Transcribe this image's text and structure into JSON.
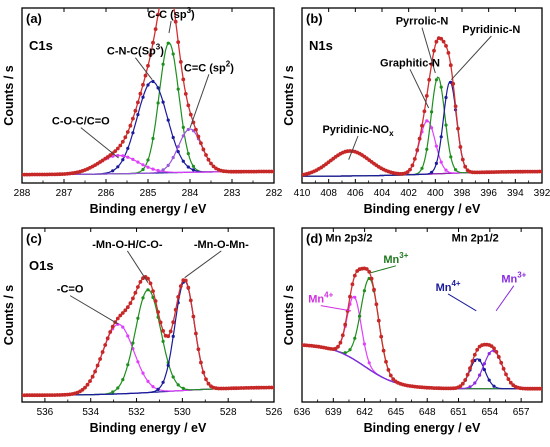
{
  "figure": {
    "panels": [
      {
        "id": "a",
        "tag": "(a)",
        "element": "C1s",
        "xlabel": "Binding energy / eV",
        "ylabel": "Counts / s",
        "xlim": [
          288,
          282
        ],
        "xticks": [
          288,
          287,
          286,
          285,
          284,
          283,
          282
        ],
        "annotations": [
          {
            "text": "C-C (sp",
            "sup": "3",
            "after": ")",
            "x": 284.45,
            "y": 0.99,
            "color": "#000000",
            "arrow_to": [
              284.5,
              0.9
            ]
          },
          {
            "text": "C-N-C(Sp",
            "sup": "3",
            "after": ")",
            "x": 285.3,
            "y": 0.77,
            "color": "#000000",
            "arrow_to": [
              284.9,
              0.62
            ]
          },
          {
            "text": "C=C (sp",
            "sup": "2",
            "after": ")",
            "x": 283.55,
            "y": 0.67,
            "color": "#000000",
            "arrow_to": [
              284.0,
              0.33
            ]
          },
          {
            "text": "C-O-C/C=O",
            "sup": "",
            "after": "",
            "x": 286.6,
            "y": 0.35,
            "color": "#000000",
            "arrow_to": [
              285.7,
              0.15
            ]
          }
        ]
      },
      {
        "id": "b",
        "tag": "(b)",
        "element": "N1s",
        "xlabel": "Binding energy / eV",
        "ylabel": "Counts / s",
        "xlim": [
          410,
          392
        ],
        "xticks": [
          410,
          408,
          406,
          404,
          402,
          400,
          398,
          396,
          394,
          392
        ],
        "annotations": [
          {
            "text": "Pyrrolic-N",
            "sup": "",
            "after": "",
            "x": 401.0,
            "y": 0.95,
            "color": "#000000",
            "arrow_to": [
              400.0,
              0.66
            ]
          },
          {
            "text": "Pyridinic-N",
            "sup": "",
            "after": "",
            "x": 395.8,
            "y": 0.9,
            "color": "#000000",
            "arrow_to": [
              398.8,
              0.62
            ]
          },
          {
            "text": "Graphitic-N",
            "sup": "",
            "after": "",
            "x": 401.9,
            "y": 0.7,
            "color": "#000000",
            "arrow_to": [
              400.5,
              0.45
            ]
          },
          {
            "text": "Pyridinic-NO",
            "sup": "x",
            "after": "",
            "x": 405.8,
            "y": 0.3,
            "color": "#000000",
            "arrow_to": [
              406.5,
              0.14
            ],
            "sub": true
          }
        ]
      },
      {
        "id": "c",
        "tag": "(c)",
        "element": "O1s",
        "xlabel": "Binding energy / eV",
        "ylabel": "Counts / s",
        "xlim": [
          537,
          526
        ],
        "xticks": [
          536,
          534,
          532,
          530,
          528,
          526
        ],
        "annotations": [
          {
            "text": "-Mn-O-H/C-O-",
            "sup": "",
            "after": "",
            "x": 532.4,
            "y": 0.93,
            "color": "#000000",
            "arrow_to": [
              531.5,
              0.72
            ]
          },
          {
            "text": "-Mn-O-Mn-",
            "sup": "",
            "after": "",
            "x": 528.3,
            "y": 0.93,
            "color": "#000000",
            "arrow_to": [
              529.9,
              0.75
            ]
          },
          {
            "text": "-C=O",
            "sup": "",
            "after": "",
            "x": 534.9,
            "y": 0.66,
            "color": "#000000",
            "arrow_to": [
              532.8,
              0.47
            ]
          }
        ]
      },
      {
        "id": "d",
        "tag": "(d)",
        "element": "",
        "xlabel": "Binding energy / eV",
        "ylabel": "Counts / s",
        "xlim": [
          636,
          659
        ],
        "xticks": [
          636,
          639,
          642,
          645,
          648,
          651,
          654,
          657
        ],
        "annotations": [
          {
            "text": "Mn 2p3/2",
            "sup": "",
            "after": "",
            "x": 640.5,
            "y": 0.97,
            "color": "#000000",
            "arrow_to": null
          },
          {
            "text": "Mn 2p1/2",
            "sup": "",
            "after": "",
            "x": 652.6,
            "y": 0.97,
            "color": "#000000",
            "arrow_to": null
          },
          {
            "text": "Mn",
            "sup": "3+",
            "after": "",
            "x": 645.0,
            "y": 0.84,
            "color": "#1f7a1f",
            "arrow_to": [
              642.6,
              0.78
            ]
          },
          {
            "text": "Mn",
            "sup": "4+",
            "after": "",
            "x": 637.8,
            "y": 0.6,
            "color": "#d12fe0",
            "arrow_to": [
              640.7,
              0.55
            ]
          },
          {
            "text": "Mn",
            "sup": "4+",
            "after": "",
            "x": 650.0,
            "y": 0.67,
            "color": "#1a1a9a",
            "arrow_to": [
              652.7,
              0.55
            ]
          },
          {
            "text": "Mn",
            "sup": "3+",
            "after": "",
            "x": 656.3,
            "y": 0.72,
            "color": "#8a2be2",
            "arrow_to": [
              654.6,
              0.55
            ]
          }
        ]
      }
    ]
  },
  "chart_data": [
    {
      "type": "line",
      "panel": "a",
      "title": "C1s",
      "xlabel": "Binding energy / eV",
      "ylabel": "Counts / s",
      "xlim": [
        288,
        282
      ],
      "ylim": [
        0,
        1.05
      ],
      "grid": false,
      "legend": "none",
      "background": {
        "a": 0.05,
        "b": 0.02,
        "center": 284.8,
        "width": 0.9
      },
      "components": [
        {
          "label": "C-C (sp3)",
          "center": 284.5,
          "height": 0.78,
          "fwhm": 0.55,
          "color": "#1e8f1e"
        },
        {
          "label": "C-N-C(Sp3)",
          "center": 284.9,
          "height": 0.55,
          "fwhm": 0.85,
          "color": "#1a1a9a"
        },
        {
          "label": "C=C (sp2)",
          "center": 284.0,
          "height": 0.26,
          "fwhm": 0.65,
          "color": "#9b59d9"
        },
        {
          "label": "C-O-C/C=O",
          "center": 285.7,
          "height": 0.11,
          "fwhm": 1.1,
          "color": "#e040fb"
        }
      ],
      "envelope_color": "#d32f2f"
    },
    {
      "type": "line",
      "panel": "b",
      "title": "N1s",
      "xlabel": "Binding energy / eV",
      "ylabel": "Counts / s",
      "xlim": [
        410,
        392
      ],
      "ylim": [
        0,
        1.05
      ],
      "grid": false,
      "legend": "none",
      "background": {
        "a": 0.04,
        "b": 0.03,
        "center": 400.0,
        "width": 2.5
      },
      "components": [
        {
          "label": "Pyridinic-NOx",
          "center": 406.4,
          "height": 0.15,
          "fwhm": 3.5,
          "color": "#9b1faa"
        },
        {
          "label": "Graphitic-N",
          "center": 400.6,
          "height": 0.32,
          "fwhm": 1.4,
          "color": "#e040fb"
        },
        {
          "label": "Pyrrolic-N",
          "center": 399.8,
          "height": 0.58,
          "fwhm": 1.2,
          "color": "#1e8f1e"
        },
        {
          "label": "Pyridinic-N",
          "center": 398.9,
          "height": 0.55,
          "fwhm": 1.15,
          "color": "#1a1a9a"
        }
      ],
      "envelope_color": "#d32f2f"
    },
    {
      "type": "line",
      "panel": "c",
      "title": "O1s",
      "xlabel": "Binding energy / eV",
      "ylabel": "Counts / s",
      "xlim": [
        537,
        526
      ],
      "ylim": [
        0,
        1.05
      ],
      "grid": false,
      "legend": "none",
      "background": {
        "a": 0.04,
        "b": 0.05,
        "center": 530.5,
        "width": 1.5
      },
      "components": [
        {
          "label": "-C=O",
          "center": 532.8,
          "height": 0.42,
          "fwhm": 1.6,
          "color": "#e040fb"
        },
        {
          "label": "-Mn-O-H/C-O-",
          "center": 531.5,
          "height": 0.62,
          "fwhm": 1.3,
          "color": "#1e8f1e"
        },
        {
          "label": "-Mn-O-Mn-",
          "center": 529.9,
          "height": 0.66,
          "fwhm": 1.0,
          "color": "#1a1a9a"
        }
      ],
      "envelope_color": "#d32f2f"
    },
    {
      "type": "line",
      "panel": "d",
      "title": "",
      "xlabel": "Binding energy / eV",
      "ylabel": "Counts / s",
      "xlim": [
        636,
        659
      ],
      "ylim": [
        0,
        1.05
      ],
      "grid": false,
      "legend": "none",
      "background": {
        "a": 0.08,
        "b": 0.27,
        "center": 642.0,
        "width": 1.6
      },
      "components": [
        {
          "label": "Mn4+ (2p3/2)",
          "center": 641.0,
          "height": 0.38,
          "fwhm": 1.6,
          "color": "#e040fb"
        },
        {
          "label": "Mn3+ (2p3/2)",
          "center": 642.5,
          "height": 0.55,
          "fwhm": 2.0,
          "color": "#1e8f1e"
        },
        {
          "label": "Mn4+ (2p1/2)",
          "center": 652.8,
          "height": 0.18,
          "fwhm": 1.7,
          "color": "#1a1a9a"
        },
        {
          "label": "Mn3+ (2p1/2)",
          "center": 654.3,
          "height": 0.23,
          "fwhm": 2.1,
          "color": "#8a2be2"
        }
      ],
      "envelope_color": "#d32f2f"
    }
  ]
}
